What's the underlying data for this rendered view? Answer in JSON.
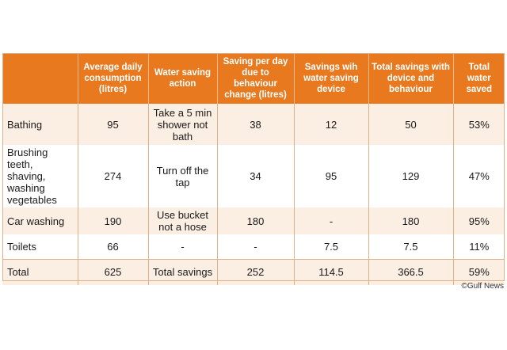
{
  "table": {
    "headers": [
      "",
      "Average daily consumption (litres)",
      "Water saving action",
      "Saving per day due to behaviour change (litres)",
      "Savings wih water saving device",
      "Total savings with device and behaviour",
      "Total water saved"
    ],
    "rows": [
      [
        "Bathing",
        "95",
        "Take a 5 min shower not bath",
        "38",
        "12",
        "50",
        "53%"
      ],
      [
        "Brushing teeth, shaving, washing vegetables",
        "274",
        "Turn off the tap",
        "34",
        "95",
        "129",
        "47%"
      ],
      [
        "Car washing",
        "190",
        "Use bucket not a hose",
        "180",
        "-",
        "180",
        "95%"
      ],
      [
        "Toilets",
        "66",
        "-",
        "-",
        "7.5",
        "7.5",
        "11%"
      ],
      [
        "Total",
        "625",
        "Total savings",
        "252",
        "114.5",
        "366.5",
        "59%"
      ]
    ]
  },
  "credit": "©Gulf News",
  "colors": {
    "header_bg": "#e8791e",
    "shaded_row": "#fbeee2",
    "rule": "#e0b08a"
  }
}
